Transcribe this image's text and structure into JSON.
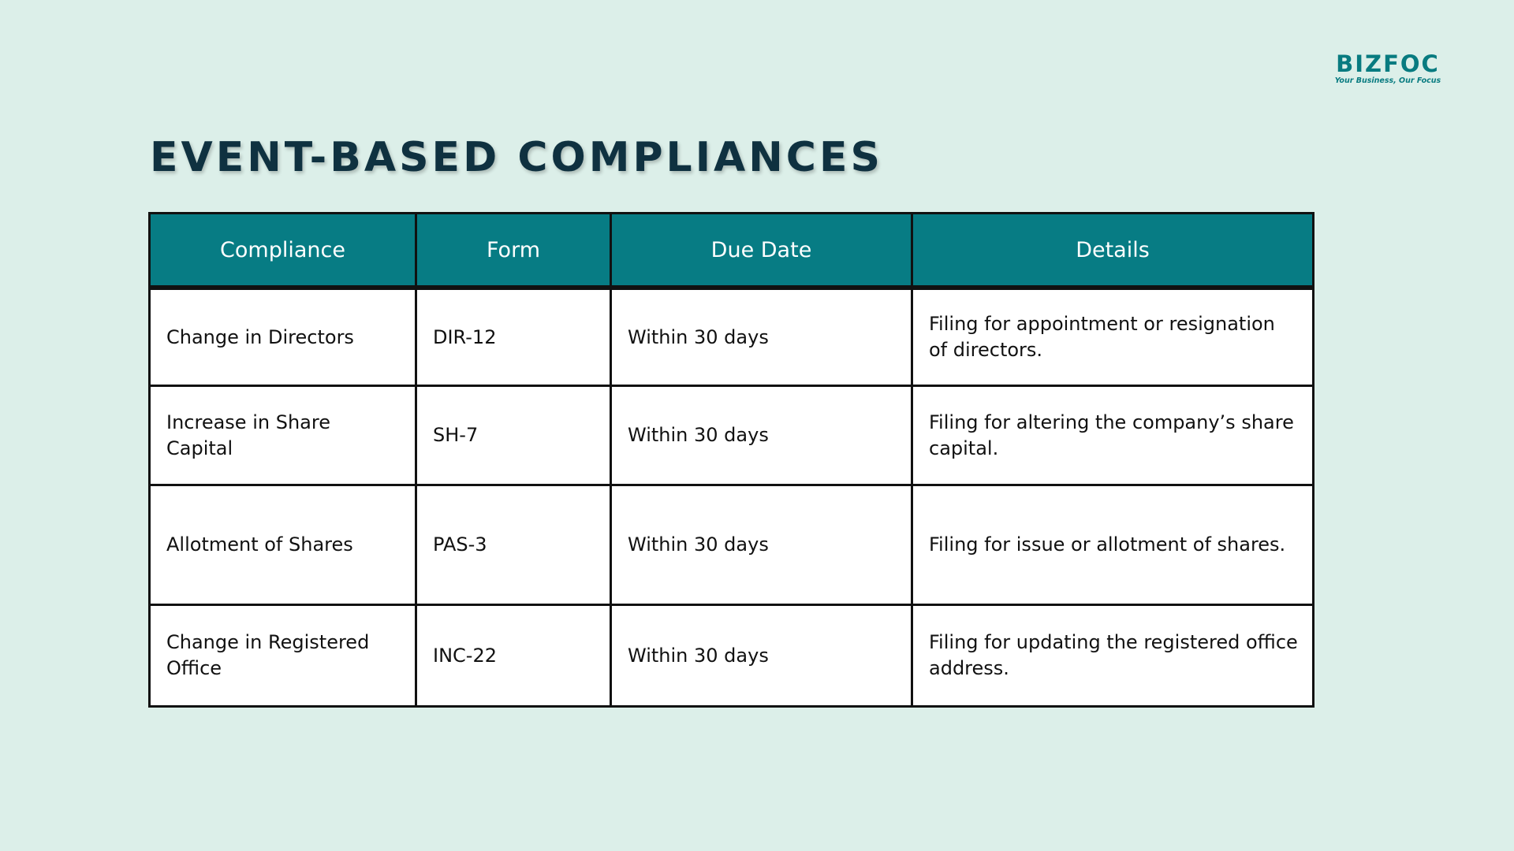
{
  "logo": {
    "wordmark": "BIZFOC",
    "tagline": "Your Business, Our Focus",
    "color": "#087b80"
  },
  "page_title": "EVENT-BASED COMPLIANCES",
  "colors": {
    "background": "#dcefe9",
    "header_fill": "#077c84",
    "title_color": "#0f3140"
  },
  "table": {
    "headers": [
      "Compliance",
      "Form",
      "Due Date",
      "Details"
    ],
    "rows": [
      [
        "Change in Directors",
        "DIR-12",
        "Within 30 days",
        "Filing for appointment or resignation of directors."
      ],
      [
        "Increase in Share Capital",
        "SH-7",
        "Within 30 days",
        "Filing for altering the company’s share capital."
      ],
      [
        "Allotment of Shares",
        "PAS-3",
        "Within 30 days",
        "Filing for issue or allotment of shares."
      ],
      [
        "Change in Registered Office",
        "INC-22",
        "Within 30 days",
        "Filing for updating the registered office address."
      ]
    ]
  }
}
